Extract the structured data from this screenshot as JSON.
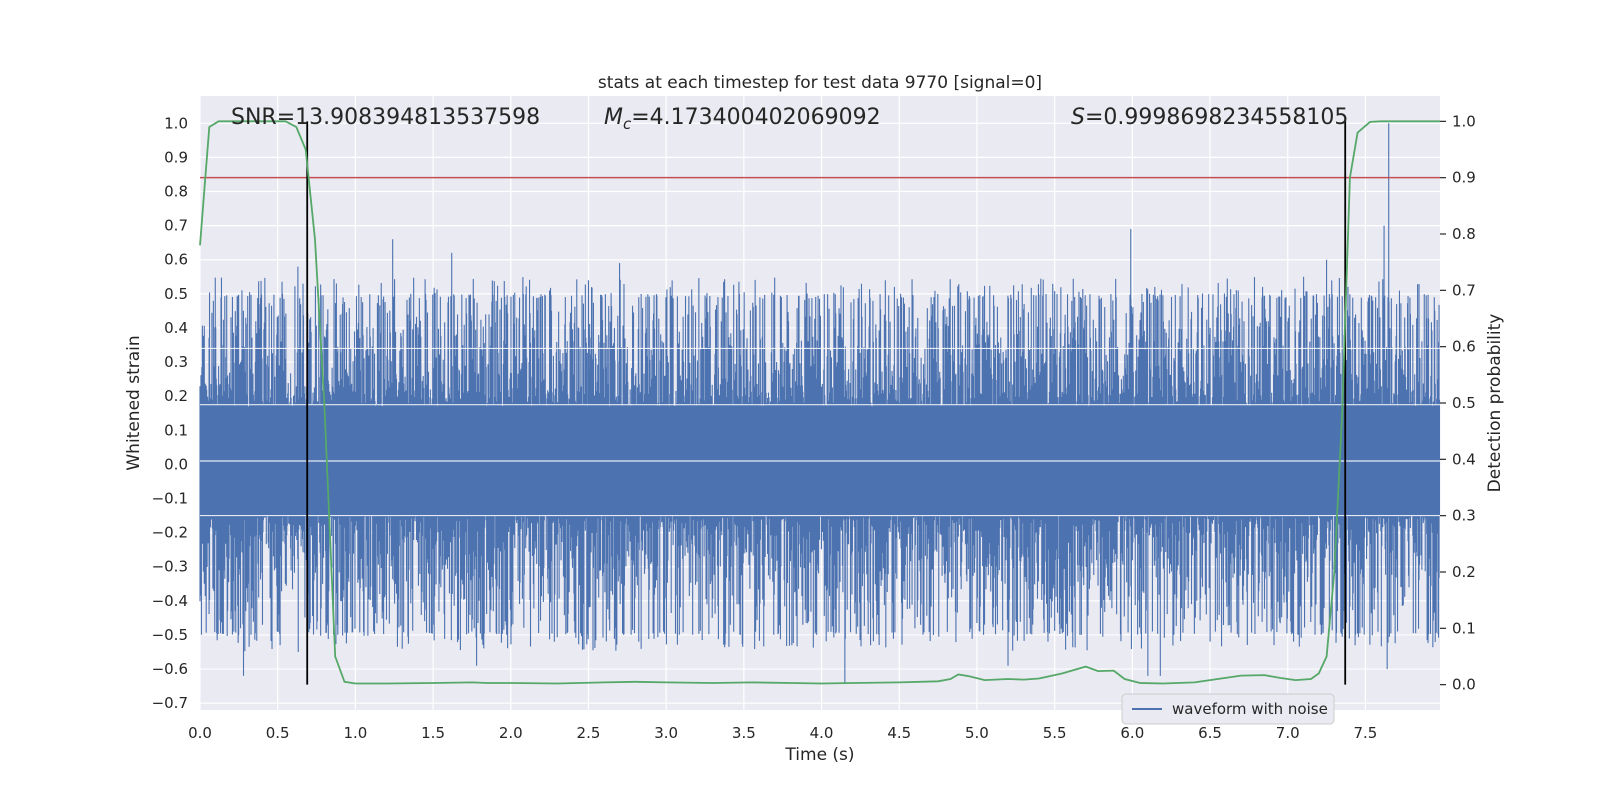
{
  "chart_data": {
    "type": "line",
    "title": "stats at each timestep for test data 9770 [signal=0]",
    "xlabel": "Time (s)",
    "ylabel": "Whitened strain",
    "y2label": "Detection probability",
    "xlim": [
      0.0,
      7.98
    ],
    "ylim": [
      -0.72,
      1.08
    ],
    "y2lim": [
      -0.045,
      1.045
    ],
    "x_ticks": [
      "0.0",
      "0.5",
      "1.0",
      "1.5",
      "2.0",
      "2.5",
      "3.0",
      "3.5",
      "4.0",
      "4.5",
      "5.0",
      "5.5",
      "6.0",
      "6.5",
      "7.0",
      "7.5"
    ],
    "y_ticks": [
      "−0.7",
      "−0.6",
      "−0.5",
      "−0.4",
      "−0.3",
      "−0.2",
      "−0.1",
      "0.0",
      "0.1",
      "0.2",
      "0.3",
      "0.4",
      "0.5",
      "0.6",
      "0.7",
      "0.8",
      "0.9",
      "1.0"
    ],
    "y2_ticks": [
      "0.0",
      "0.1",
      "0.2",
      "0.3",
      "0.4",
      "0.5",
      "0.6",
      "0.7",
      "0.8",
      "0.9",
      "1.0"
    ],
    "grid": true,
    "legend": {
      "position": "bottom-right",
      "entries": [
        "waveform with noise"
      ]
    },
    "annotations": [
      {
        "prefix": "SNR",
        "value": "=13.908394813537598"
      },
      {
        "prefix": "M",
        "subscript": "c",
        "value": "=4.173400402069092"
      },
      {
        "prefix": "S",
        "value": "=0.9998698234558105"
      }
    ],
    "threshold_y2": 0.9,
    "vertical_lines_x": [
      0.69,
      7.37
    ],
    "waveform": {
      "name": "waveform with noise",
      "duration": 7.98,
      "band_min": -0.15,
      "band_max": 0.17,
      "peak_max": 1.0,
      "peak_min": -0.64,
      "peaks": [
        {
          "x": 0.63,
          "y": 0.58
        },
        {
          "x": 0.27,
          "y": 0.51
        },
        {
          "x": 0.28,
          "y": -0.62
        },
        {
          "x": 1.24,
          "y": 0.66
        },
        {
          "x": 1.62,
          "y": 0.62
        },
        {
          "x": 2.5,
          "y": 0.54
        },
        {
          "x": 2.7,
          "y": 0.59
        },
        {
          "x": 1.78,
          "y": -0.59
        },
        {
          "x": 4.15,
          "y": -0.64
        },
        {
          "x": 5.99,
          "y": 0.69
        },
        {
          "x": 7.25,
          "y": 0.6
        },
        {
          "x": 7.62,
          "y": 0.7
        },
        {
          "x": 7.65,
          "y": 1.0
        },
        {
          "x": 7.64,
          "y": -0.6
        },
        {
          "x": 6.1,
          "y": -0.62
        },
        {
          "x": 6.18,
          "y": -0.62
        },
        {
          "x": 5.2,
          "y": -0.59
        },
        {
          "x": 4.72,
          "y": -0.5
        }
      ]
    },
    "probability": {
      "color": "#55a868",
      "x": [
        0.0,
        0.06,
        0.12,
        0.2,
        0.3,
        0.4,
        0.5,
        0.55,
        0.62,
        0.68,
        0.74,
        0.8,
        0.87,
        0.93,
        1.0,
        1.2,
        1.5,
        1.75,
        1.85,
        2.0,
        2.3,
        2.6,
        2.8,
        3.0,
        3.3,
        3.55,
        3.8,
        4.0,
        4.2,
        4.5,
        4.75,
        4.83,
        4.88,
        4.95,
        5.05,
        5.2,
        5.3,
        5.4,
        5.55,
        5.7,
        5.78,
        5.88,
        5.95,
        6.05,
        6.2,
        6.4,
        6.55,
        6.7,
        6.85,
        6.95,
        7.05,
        7.15,
        7.2,
        7.25,
        7.3,
        7.35,
        7.4,
        7.45,
        7.53,
        7.6,
        7.7,
        7.8,
        7.98
      ],
      "y": [
        0.78,
        0.99,
        1.0,
        1.0,
        1.0,
        1.0,
        1.0,
        1.0,
        0.99,
        0.95,
        0.79,
        0.5,
        0.05,
        0.005,
        0.002,
        0.002,
        0.003,
        0.004,
        0.003,
        0.003,
        0.002,
        0.004,
        0.005,
        0.004,
        0.003,
        0.004,
        0.003,
        0.002,
        0.003,
        0.004,
        0.006,
        0.01,
        0.018,
        0.015,
        0.008,
        0.01,
        0.009,
        0.011,
        0.02,
        0.032,
        0.024,
        0.025,
        0.01,
        0.003,
        0.002,
        0.004,
        0.01,
        0.016,
        0.017,
        0.012,
        0.008,
        0.01,
        0.02,
        0.05,
        0.2,
        0.48,
        0.9,
        0.98,
        0.999,
        1.0,
        1.0,
        1.0,
        1.0
      ]
    }
  }
}
